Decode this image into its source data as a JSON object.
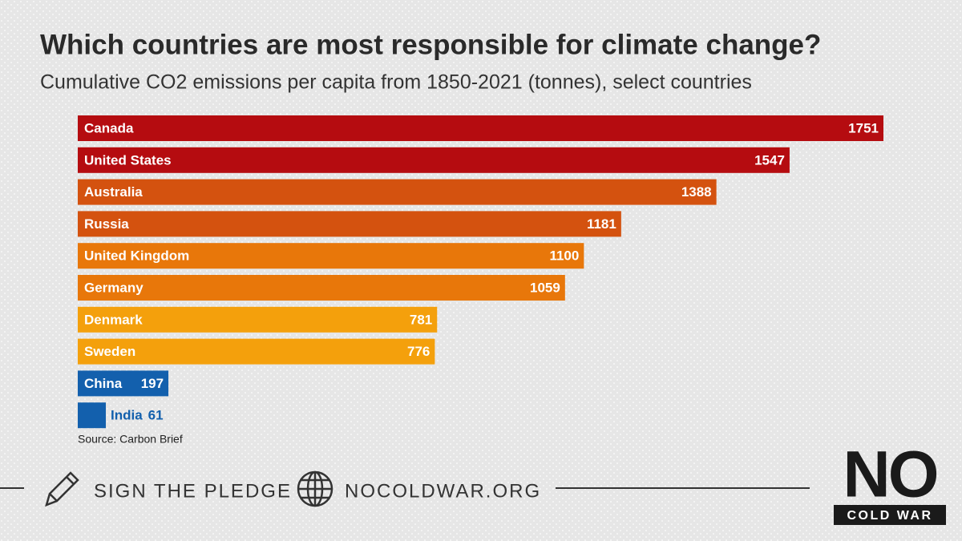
{
  "chart_data": {
    "type": "bar",
    "orientation": "horizontal",
    "title": "Which countries are most responsible for climate change?",
    "subtitle": "Cumulative CO2 emissions per capita from 1850-2021 (tonnes), select countries",
    "categories": [
      "Canada",
      "United States",
      "Australia",
      "Russia",
      "United Kingdom",
      "Germany",
      "Denmark",
      "Sweden",
      "China",
      "India"
    ],
    "values": [
      1751,
      1547,
      1388,
      1181,
      1100,
      1059,
      781,
      776,
      197,
      61
    ],
    "colors": [
      "#b50c10",
      "#b50c10",
      "#d4520f",
      "#d4520f",
      "#e8770a",
      "#e8770a",
      "#f4a00c",
      "#f4a00c",
      "#1360ad",
      "#1360ad"
    ],
    "source": "Source: Carbon Brief"
  },
  "footer": {
    "pledge": "SIGN THE PLEDGE",
    "site": "NOCOLDWAR.ORG",
    "logo_top": "NO",
    "logo_bottom": "COLD WAR"
  }
}
